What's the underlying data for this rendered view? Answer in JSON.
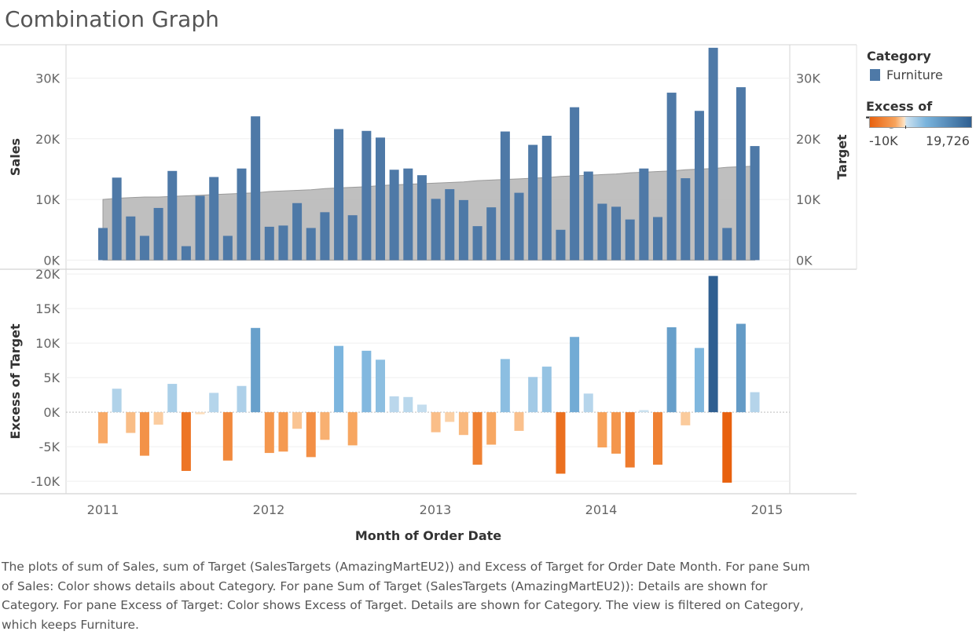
{
  "title": "Combination Graph",
  "legend": {
    "category_title": "Category",
    "category_item": "Furniture",
    "category_color": "#4e79a7",
    "excess_title": "Excess of Target",
    "excess_min": "-10K",
    "excess_max": "19,726"
  },
  "caption": "The plots of sum of Sales, sum of Target (SalesTargets (AmazingMartEU2)) and Excess of Target for Order Date Month. For pane Sum of Sales:  Color shows details about Category.  For pane Sum of Target (SalesTargets (AmazingMartEU2)):  Details are shown for Category.  For pane Excess of Target:  Color shows Excess of Target. Details are shown for Category. The view is filtered on Category, which keeps Furniture.",
  "chart_data": {
    "type": "bar",
    "xlabel": "Month of Order Date",
    "x_ticks": [
      "2011",
      "2012",
      "2013",
      "2014",
      "2015"
    ],
    "top_pane": {
      "ylabel_left": "Sales",
      "ylabel_right": "Target",
      "y_ticks": [
        "0K",
        "10K",
        "20K",
        "30K"
      ],
      "ylim": [
        -1500,
        35500
      ],
      "sales": [
        5300,
        13600,
        7200,
        4000,
        8600,
        14700,
        2300,
        10600,
        13700,
        4000,
        15100,
        23700,
        5500,
        5700,
        9400,
        5300,
        7900,
        21600,
        7400,
        21300,
        20200,
        14900,
        15100,
        14000,
        10100,
        11700,
        9900,
        5600,
        8700,
        21200,
        11100,
        19000,
        20500,
        5000,
        25200,
        14600,
        9300,
        8800,
        6700,
        15100,
        7100,
        27600,
        13500,
        24600,
        35000,
        5300,
        28500,
        18800
      ],
      "target": [
        10000,
        10200,
        10300,
        10400,
        10400,
        10500,
        10600,
        10700,
        10800,
        10900,
        11000,
        11100,
        11300,
        11400,
        11500,
        11600,
        11800,
        11900,
        12000,
        12100,
        12300,
        12400,
        12500,
        12600,
        12700,
        12800,
        12900,
        13100,
        13200,
        13300,
        13400,
        13500,
        13600,
        13800,
        13900,
        14000,
        14100,
        14200,
        14400,
        14500,
        14600,
        14700,
        14900,
        15000,
        15100,
        15300,
        15400,
        15500
      ]
    },
    "bottom_pane": {
      "ylabel": "Excess of Target",
      "y_ticks": [
        "-10K",
        "-5K",
        "0K",
        "5K",
        "10K",
        "15K",
        "20K"
      ],
      "ylim": [
        -11800,
        20700
      ],
      "excess": [
        -4500,
        3400,
        -3000,
        -6300,
        -1800,
        4100,
        -8500,
        -300,
        2800,
        -7000,
        3800,
        12200,
        -5900,
        -5700,
        -2400,
        -6500,
        -4000,
        9600,
        -4800,
        8900,
        7600,
        2300,
        2200,
        1100,
        -2900,
        -1400,
        -3300,
        -7600,
        -4700,
        7700,
        -2700,
        5100,
        6600,
        -8900,
        10900,
        2700,
        -5100,
        -6000,
        -8000,
        300,
        -7600,
        12300,
        -1900,
        9300,
        19726,
        -10200,
        12800,
        2900
      ]
    },
    "colors": {
      "sales_bar": "#4e79a7",
      "target_area": "#b4b4b4",
      "target_area_edge": "#9a9a9a",
      "excess_scale": [
        "#e8610e",
        "#f7a35c",
        "#fde3c4",
        "#cde2f0",
        "#7ab4dd",
        "#2f5f91"
      ]
    }
  }
}
